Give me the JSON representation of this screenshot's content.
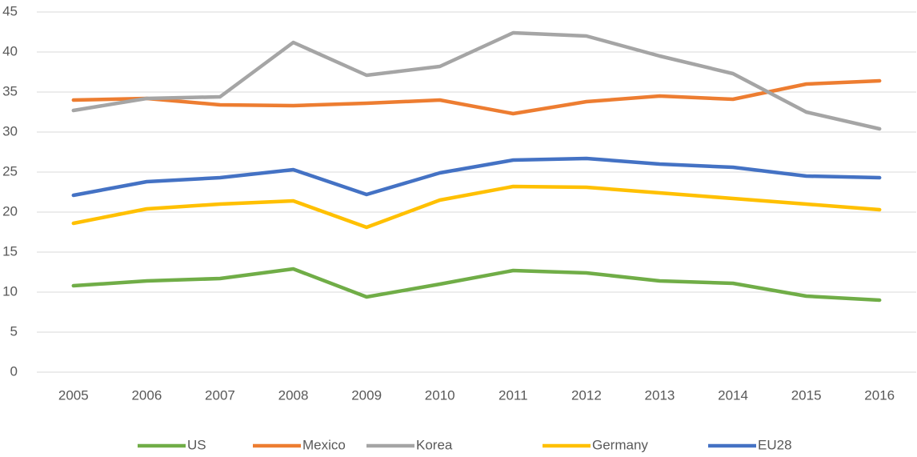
{
  "chart_data": {
    "type": "line",
    "categories": [
      "2005",
      "2006",
      "2007",
      "2008",
      "2009",
      "2010",
      "2011",
      "2012",
      "2013",
      "2014",
      "2015",
      "2016"
    ],
    "series": [
      {
        "name": "US",
        "color": "#70ad47",
        "values": [
          10.8,
          11.4,
          11.7,
          12.9,
          9.4,
          11.0,
          12.7,
          12.4,
          11.4,
          11.1,
          9.5,
          9.0
        ]
      },
      {
        "name": "Mexico",
        "color": "#ed7d31",
        "values": [
          34.0,
          34.2,
          33.4,
          33.3,
          33.6,
          34.0,
          32.3,
          33.8,
          34.5,
          34.1,
          36.0,
          36.4
        ]
      },
      {
        "name": "Korea",
        "color": "#a5a5a5",
        "values": [
          32.7,
          34.2,
          34.4,
          41.2,
          37.1,
          38.2,
          42.4,
          42.0,
          39.5,
          37.3,
          32.5,
          30.4
        ]
      },
      {
        "name": "Germany",
        "color": "#ffc000",
        "values": [
          18.6,
          20.4,
          21.0,
          21.4,
          18.1,
          21.5,
          23.2,
          23.1,
          22.4,
          21.7,
          21.0,
          20.3
        ]
      },
      {
        "name": "EU28",
        "color": "#4472c4",
        "values": [
          22.1,
          23.8,
          24.3,
          25.3,
          22.2,
          24.9,
          26.5,
          26.7,
          26.0,
          25.6,
          24.5,
          24.3
        ]
      }
    ],
    "ylim": [
      0,
      45
    ],
    "yticks": [
      0,
      5,
      10,
      15,
      20,
      25,
      30,
      35,
      40,
      45
    ],
    "grid": true,
    "legend": "bottom"
  }
}
